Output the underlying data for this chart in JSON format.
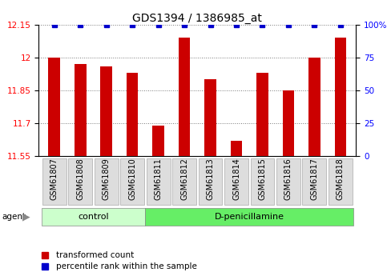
{
  "title": "GDS1394 / 1386985_at",
  "samples": [
    "GSM61807",
    "GSM61808",
    "GSM61809",
    "GSM61810",
    "GSM61811",
    "GSM61812",
    "GSM61813",
    "GSM61814",
    "GSM61815",
    "GSM61816",
    "GSM61817",
    "GSM61818"
  ],
  "transformed_counts": [
    12.0,
    11.97,
    11.96,
    11.93,
    11.69,
    12.09,
    11.9,
    11.62,
    11.93,
    11.85,
    12.0,
    12.09
  ],
  "percentile_ranks": [
    100,
    100,
    100,
    100,
    100,
    100,
    100,
    100,
    100,
    100,
    100,
    100
  ],
  "bar_color": "#cc0000",
  "dot_color": "#0000cc",
  "ylim_left": [
    11.55,
    12.15
  ],
  "ylim_right": [
    0,
    100
  ],
  "yticks_left": [
    11.55,
    11.7,
    11.85,
    12.0,
    12.15
  ],
  "ytick_labels_left": [
    "11.55",
    "11.7",
    "11.85",
    "12",
    "12.15"
  ],
  "yticks_right": [
    0,
    25,
    50,
    75,
    100
  ],
  "ytick_labels_right": [
    "0",
    "25",
    "50",
    "75",
    "100%"
  ],
  "groups": [
    {
      "label": "control",
      "start": 0,
      "end": 4,
      "color": "#ccffcc"
    },
    {
      "label": "D-penicillamine",
      "start": 4,
      "end": 12,
      "color": "#66ee66"
    }
  ],
  "agent_label": "agent",
  "legend_items": [
    {
      "label": "transformed count",
      "color": "#cc0000"
    },
    {
      "label": "percentile rank within the sample",
      "color": "#0000cc"
    }
  ],
  "background_color": "#ffffff",
  "grid_color": "#777777",
  "bar_width": 0.45,
  "tick_label_bg": "#dddddd",
  "tick_label_border": "#aaaaaa",
  "title_fontsize": 10,
  "tick_fontsize": 7.5,
  "sample_fontsize": 7,
  "group_fontsize": 8,
  "legend_fontsize": 7.5
}
